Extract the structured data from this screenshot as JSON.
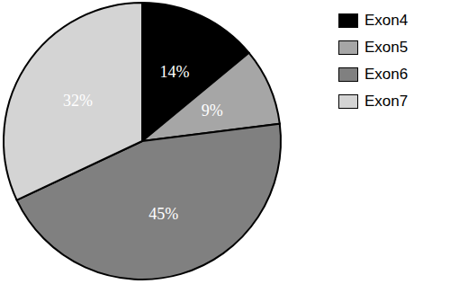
{
  "chart_data": {
    "type": "pie",
    "categories": [
      "Exon4",
      "Exon5",
      "Exon6",
      "Exon7"
    ],
    "values": [
      14,
      9,
      45,
      32
    ],
    "value_labels": [
      "14%",
      "9%",
      "45%",
      "32%"
    ],
    "colors": [
      "#000000",
      "#a6a6a6",
      "#808080",
      "#d4d4d4"
    ],
    "data_labels": true,
    "legend": "upper right"
  }
}
